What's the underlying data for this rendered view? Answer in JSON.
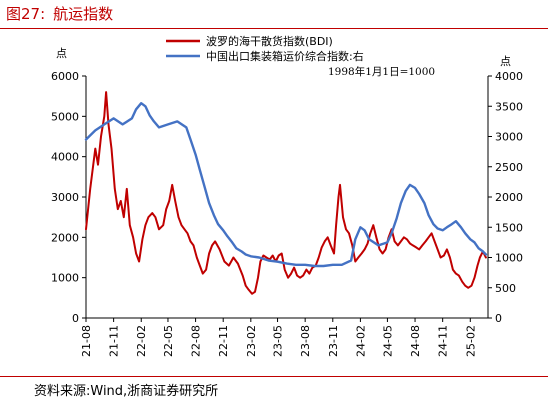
{
  "figure": {
    "label": "图27:",
    "title": "航运指数",
    "source": "资料来源:Wind,浙商证券研究所"
  },
  "chart_data": {
    "type": "line",
    "title": "",
    "left_unit": "点",
    "right_unit": "点",
    "annotation": "1998年1月1日=1000",
    "left_axis": {
      "min": 0,
      "max": 6000,
      "ticks": [
        0,
        1000,
        2000,
        3000,
        4000,
        5000,
        6000
      ]
    },
    "right_axis": {
      "min": 0,
      "max": 4000,
      "ticks": [
        0,
        500,
        1000,
        1500,
        2000,
        2500,
        3000,
        3500,
        4000
      ]
    },
    "x_ticks": [
      "21-08",
      "21-11",
      "22-02",
      "22-05",
      "22-08",
      "22-11",
      "23-02",
      "23-05",
      "23-08",
      "23-11",
      "24-02",
      "24-05",
      "24-08",
      "24-11",
      "25-02"
    ],
    "x_start": "2021-08",
    "series": [
      {
        "name": "波罗的海干散货指数(BDI)",
        "axis": "left",
        "color": "#c00000",
        "points": [
          [
            "2021-08-01",
            2200
          ],
          [
            "2021-08-15",
            3200
          ],
          [
            "2021-09-01",
            4200
          ],
          [
            "2021-09-10",
            3800
          ],
          [
            "2021-09-20",
            4500
          ],
          [
            "2021-10-01",
            5000
          ],
          [
            "2021-10-07",
            5600
          ],
          [
            "2021-10-15",
            4800
          ],
          [
            "2021-10-25",
            4200
          ],
          [
            "2021-11-05",
            3200
          ],
          [
            "2021-11-15",
            2700
          ],
          [
            "2021-11-25",
            2900
          ],
          [
            "2021-12-05",
            2500
          ],
          [
            "2021-12-15",
            3200
          ],
          [
            "2021-12-25",
            2300
          ],
          [
            "2022-01-05",
            2000
          ],
          [
            "2022-01-15",
            1600
          ],
          [
            "2022-01-25",
            1400
          ],
          [
            "2022-02-05",
            1950
          ],
          [
            "2022-02-15",
            2300
          ],
          [
            "2022-02-25",
            2500
          ],
          [
            "2022-03-10",
            2600
          ],
          [
            "2022-03-20",
            2500
          ],
          [
            "2022-04-01",
            2200
          ],
          [
            "2022-04-15",
            2300
          ],
          [
            "2022-04-25",
            2700
          ],
          [
            "2022-05-05",
            2900
          ],
          [
            "2022-05-15",
            3300
          ],
          [
            "2022-05-25",
            2900
          ],
          [
            "2022-06-05",
            2500
          ],
          [
            "2022-06-15",
            2300
          ],
          [
            "2022-06-25",
            2200
          ],
          [
            "2022-07-05",
            2100
          ],
          [
            "2022-07-15",
            1900
          ],
          [
            "2022-07-25",
            1800
          ],
          [
            "2022-08-05",
            1500
          ],
          [
            "2022-08-15",
            1300
          ],
          [
            "2022-08-25",
            1100
          ],
          [
            "2022-09-05",
            1200
          ],
          [
            "2022-09-15",
            1600
          ],
          [
            "2022-09-25",
            1800
          ],
          [
            "2022-10-05",
            1900
          ],
          [
            "2022-10-20",
            1700
          ],
          [
            "2022-11-05",
            1400
          ],
          [
            "2022-11-20",
            1300
          ],
          [
            "2022-12-05",
            1500
          ],
          [
            "2022-12-20",
            1350
          ],
          [
            "2023-01-05",
            1050
          ],
          [
            "2023-01-15",
            800
          ],
          [
            "2023-01-25",
            700
          ],
          [
            "2023-02-05",
            600
          ],
          [
            "2023-02-15",
            650
          ],
          [
            "2023-02-25",
            1000
          ],
          [
            "2023-03-05",
            1400
          ],
          [
            "2023-03-15",
            1550
          ],
          [
            "2023-03-25",
            1500
          ],
          [
            "2023-04-05",
            1450
          ],
          [
            "2023-04-15",
            1550
          ],
          [
            "2023-04-25",
            1400
          ],
          [
            "2023-05-05",
            1550
          ],
          [
            "2023-05-15",
            1600
          ],
          [
            "2023-05-25",
            1200
          ],
          [
            "2023-06-05",
            1000
          ],
          [
            "2023-06-15",
            1100
          ],
          [
            "2023-06-25",
            1250
          ],
          [
            "2023-07-05",
            1050
          ],
          [
            "2023-07-15",
            1000
          ],
          [
            "2023-07-25",
            1050
          ],
          [
            "2023-08-05",
            1200
          ],
          [
            "2023-08-15",
            1100
          ],
          [
            "2023-08-25",
            1250
          ],
          [
            "2023-09-05",
            1300
          ],
          [
            "2023-09-15",
            1500
          ],
          [
            "2023-09-25",
            1750
          ],
          [
            "2023-10-05",
            1900
          ],
          [
            "2023-10-15",
            2000
          ],
          [
            "2023-10-25",
            1800
          ],
          [
            "2023-11-05",
            1600
          ],
          [
            "2023-11-12",
            2300
          ],
          [
            "2023-11-20",
            3000
          ],
          [
            "2023-11-25",
            3300
          ],
          [
            "2023-12-05",
            2500
          ],
          [
            "2023-12-15",
            2200
          ],
          [
            "2023-12-25",
            2100
          ],
          [
            "2024-01-05",
            1800
          ],
          [
            "2024-01-15",
            1400
          ],
          [
            "2024-01-25",
            1500
          ],
          [
            "2024-02-05",
            1600
          ],
          [
            "2024-02-15",
            1700
          ],
          [
            "2024-02-25",
            1850
          ],
          [
            "2024-03-05",
            2100
          ],
          [
            "2024-03-15",
            2300
          ],
          [
            "2024-03-25",
            2000
          ],
          [
            "2024-04-05",
            1700
          ],
          [
            "2024-04-15",
            1600
          ],
          [
            "2024-04-25",
            1700
          ],
          [
            "2024-05-05",
            2000
          ],
          [
            "2024-05-15",
            2200
          ],
          [
            "2024-05-25",
            1900
          ],
          [
            "2024-06-05",
            1800
          ],
          [
            "2024-06-15",
            1900
          ],
          [
            "2024-06-25",
            2000
          ],
          [
            "2024-07-05",
            1950
          ],
          [
            "2024-07-15",
            1850
          ],
          [
            "2024-07-25",
            1800
          ],
          [
            "2024-08-05",
            1750
          ],
          [
            "2024-08-15",
            1700
          ],
          [
            "2024-08-25",
            1800
          ],
          [
            "2024-09-05",
            1900
          ],
          [
            "2024-09-15",
            2000
          ],
          [
            "2024-09-25",
            2100
          ],
          [
            "2024-10-05",
            1900
          ],
          [
            "2024-10-15",
            1700
          ],
          [
            "2024-10-25",
            1500
          ],
          [
            "2024-11-05",
            1550
          ],
          [
            "2024-11-15",
            1700
          ],
          [
            "2024-11-25",
            1500
          ],
          [
            "2024-12-05",
            1200
          ],
          [
            "2024-12-15",
            1100
          ],
          [
            "2024-12-25",
            1050
          ],
          [
            "2025-01-05",
            900
          ],
          [
            "2025-01-15",
            800
          ],
          [
            "2025-01-25",
            750
          ],
          [
            "2025-02-05",
            800
          ],
          [
            "2025-02-15",
            1000
          ],
          [
            "2025-02-25",
            1300
          ],
          [
            "2025-03-05",
            1500
          ],
          [
            "2025-03-15",
            1650
          ],
          [
            "2025-03-25",
            1500
          ]
        ]
      },
      {
        "name": "中国出口集装箱运价综合指数:右",
        "axis": "right",
        "color": "#4472c4",
        "points": [
          [
            "2021-08-01",
            2950
          ],
          [
            "2021-09-01",
            3100
          ],
          [
            "2021-10-01",
            3200
          ],
          [
            "2021-11-01",
            3300
          ],
          [
            "2021-12-01",
            3200
          ],
          [
            "2022-01-01",
            3300
          ],
          [
            "2022-01-15",
            3450
          ],
          [
            "2022-02-01",
            3550
          ],
          [
            "2022-02-15",
            3500
          ],
          [
            "2022-03-01",
            3350
          ],
          [
            "2022-03-15",
            3250
          ],
          [
            "2022-04-01",
            3150
          ],
          [
            "2022-05-01",
            3200
          ],
          [
            "2022-06-01",
            3250
          ],
          [
            "2022-07-01",
            3150
          ],
          [
            "2022-07-15",
            2950
          ],
          [
            "2022-08-01",
            2700
          ],
          [
            "2022-08-15",
            2450
          ],
          [
            "2022-09-01",
            2150
          ],
          [
            "2022-09-15",
            1900
          ],
          [
            "2022-10-01",
            1700
          ],
          [
            "2022-10-15",
            1550
          ],
          [
            "2022-11-01",
            1450
          ],
          [
            "2022-11-15",
            1350
          ],
          [
            "2022-12-01",
            1250
          ],
          [
            "2022-12-15",
            1150
          ],
          [
            "2023-01-01",
            1100
          ],
          [
            "2023-01-15",
            1050
          ],
          [
            "2023-02-01",
            1020
          ],
          [
            "2023-03-01",
            1000
          ],
          [
            "2023-04-01",
            950
          ],
          [
            "2023-05-01",
            930
          ],
          [
            "2023-06-01",
            900
          ],
          [
            "2023-07-01",
            880
          ],
          [
            "2023-08-01",
            880
          ],
          [
            "2023-09-01",
            860
          ],
          [
            "2023-10-01",
            860
          ],
          [
            "2023-11-01",
            880
          ],
          [
            "2023-12-01",
            880
          ],
          [
            "2024-01-01",
            950
          ],
          [
            "2024-01-15",
            1300
          ],
          [
            "2024-02-01",
            1500
          ],
          [
            "2024-02-15",
            1450
          ],
          [
            "2024-03-01",
            1300
          ],
          [
            "2024-04-01",
            1200
          ],
          [
            "2024-05-01",
            1250
          ],
          [
            "2024-05-15",
            1400
          ],
          [
            "2024-06-01",
            1650
          ],
          [
            "2024-06-15",
            1900
          ],
          [
            "2024-07-01",
            2100
          ],
          [
            "2024-07-15",
            2200
          ],
          [
            "2024-08-01",
            2150
          ],
          [
            "2024-08-15",
            2050
          ],
          [
            "2024-09-01",
            1900
          ],
          [
            "2024-09-15",
            1700
          ],
          [
            "2024-10-01",
            1550
          ],
          [
            "2024-10-15",
            1480
          ],
          [
            "2024-11-01",
            1450
          ],
          [
            "2024-11-15",
            1500
          ],
          [
            "2024-12-01",
            1550
          ],
          [
            "2024-12-15",
            1600
          ],
          [
            "2025-01-01",
            1500
          ],
          [
            "2025-01-15",
            1400
          ],
          [
            "2025-02-01",
            1300
          ],
          [
            "2025-02-15",
            1250
          ],
          [
            "2025-03-01",
            1150
          ],
          [
            "2025-03-15",
            1100
          ],
          [
            "2025-03-25",
            1050
          ]
        ]
      }
    ]
  }
}
